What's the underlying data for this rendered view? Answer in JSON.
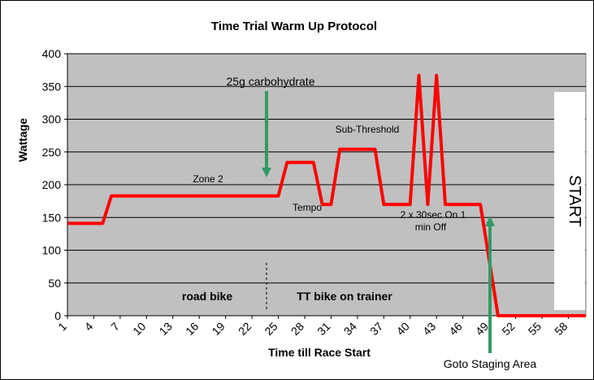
{
  "chart_data": {
    "type": "line",
    "title": "Time Trial Warm Up Protocol",
    "xlabel": "Time till Race Start",
    "ylabel": "Wattage",
    "ylim": [
      0,
      400
    ],
    "yticks": [
      0,
      50,
      100,
      150,
      200,
      250,
      300,
      350,
      400
    ],
    "xlim": [
      1,
      60
    ],
    "xticks": [
      "1",
      "4",
      "7",
      "10",
      "13",
      "16",
      "19",
      "22",
      "25",
      "28",
      "31",
      "34",
      "37",
      "40",
      "43",
      "46",
      "49",
      "52",
      "55",
      "58"
    ],
    "grid": true,
    "legend": "none",
    "series": [
      {
        "color": "#ff0000",
        "points": [
          [
            1,
            141
          ],
          [
            5,
            141
          ],
          [
            6,
            183
          ],
          [
            25,
            183
          ],
          [
            26,
            234
          ],
          [
            29,
            234
          ],
          [
            30,
            170
          ],
          [
            31,
            170
          ],
          [
            32,
            254
          ],
          [
            36,
            254
          ],
          [
            37,
            170
          ],
          [
            40,
            170
          ],
          [
            41,
            367
          ],
          [
            42,
            170
          ],
          [
            43,
            367
          ],
          [
            44,
            170
          ],
          [
            48,
            170
          ],
          [
            50,
            0
          ],
          [
            60,
            0
          ]
        ]
      }
    ],
    "annotations": {
      "carb": "25g carbohydrate",
      "zone2": "Zone 2",
      "subthreshold": "Sub-Threshold",
      "tempo": "Tempo",
      "intervals_line1": "2 x 30sec On 1",
      "intervals_line2": "min Off",
      "road_bike": "road bike",
      "tt_bike": "TT bike on trainer",
      "start": "START",
      "staging": "Goto Staging Area"
    },
    "colors": {
      "plot_bg": "#c0c0c0",
      "line": "#ff0000",
      "arrow": "#339966",
      "grid": "#000000"
    }
  }
}
